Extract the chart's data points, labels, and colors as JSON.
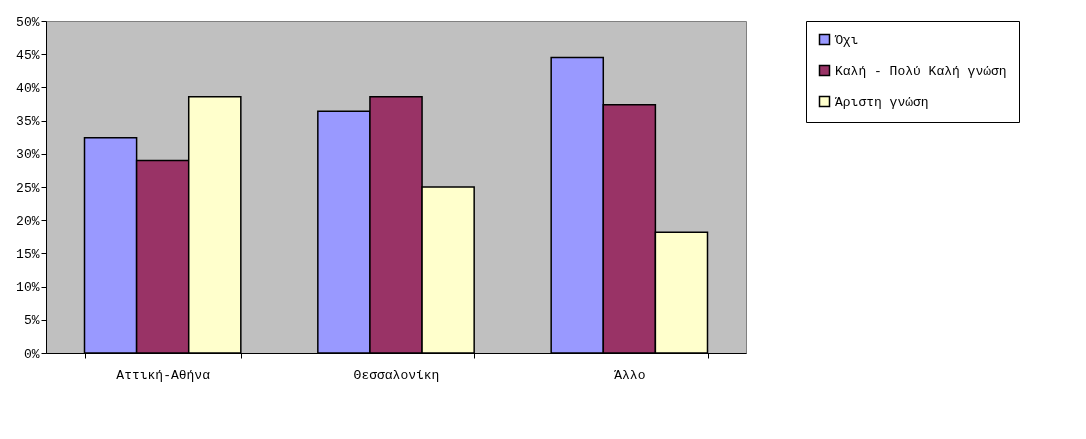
{
  "chart_data": {
    "type": "bar",
    "categories": [
      "Αττική-Αθήνα",
      "Θεσσαλονίκη",
      "Άλλο"
    ],
    "series": [
      {
        "name": "Όχι",
        "color": "#9999ff",
        "values": [
          32.4,
          36.4,
          44.5
        ]
      },
      {
        "name": "Καλή - Πολύ Καλή γνώση",
        "color": "#993366",
        "values": [
          29.0,
          38.6,
          37.4
        ]
      },
      {
        "name": "Άριστη γνώση",
        "color": "#ffffcc",
        "values": [
          38.6,
          25.0,
          18.2
        ]
      }
    ],
    "ylim": [
      0,
      50
    ],
    "yticks": [
      {
        "value": 0,
        "label": "0%"
      },
      {
        "value": 5,
        "label": "5%"
      },
      {
        "value": 10,
        "label": "10%"
      },
      {
        "value": 15,
        "label": "15%"
      },
      {
        "value": 20,
        "label": "20%"
      },
      {
        "value": 25,
        "label": "25%"
      },
      {
        "value": 30,
        "label": "30%"
      },
      {
        "value": 35,
        "label": "35%"
      },
      {
        "value": 40,
        "label": "40%"
      },
      {
        "value": 45,
        "label": "45%"
      },
      {
        "value": 50,
        "label": "50%"
      }
    ],
    "grid": false,
    "legend": "right"
  }
}
